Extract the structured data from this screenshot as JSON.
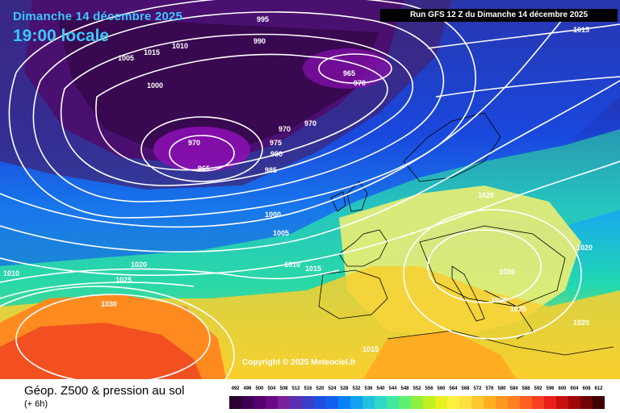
{
  "header": {
    "date": "Dimanche 14 décembre 2025",
    "time": "19:00 locale",
    "run": "Run GFS 12 Z du Dimanche 14 décembre 2025"
  },
  "map": {
    "copyright": "Copyright © 2025 Meteociel.fr",
    "isobar_labels": [
      "995",
      "990",
      "1015",
      "1010",
      "1005",
      "1015",
      "1000",
      "965",
      "970",
      "970",
      "970",
      "975",
      "980",
      "985",
      "970",
      "965",
      "1000",
      "1005",
      "1010",
      "1015",
      "1020",
      "1020",
      "1025",
      "1030",
      "1010",
      "1020",
      "1030",
      "1025",
      "1025",
      "1020",
      "1015"
    ]
  },
  "footer": {
    "title": "Géop. Z500 & pression au sol",
    "subtitle": "(+ 6h)"
  },
  "legend": {
    "ticks": [
      "492",
      "496",
      "500",
      "504",
      "508",
      "512",
      "516",
      "520",
      "524",
      "528",
      "532",
      "536",
      "540",
      "544",
      "548",
      "552",
      "556",
      "560",
      "564",
      "568",
      "572",
      "576",
      "580",
      "584",
      "588",
      "592",
      "596",
      "600",
      "604",
      "608",
      "612"
    ],
    "colors": [
      "#2a0030",
      "#3d0050",
      "#55006e",
      "#6a0a88",
      "#7a1fa0",
      "#5a2fb0",
      "#3a3fc8",
      "#1f4fe0",
      "#1060f0",
      "#0a80f5",
      "#12a0f0",
      "#20c0e0",
      "#30d8c8",
      "#40e8a0",
      "#60f070",
      "#90f040",
      "#c0f020",
      "#e8f020",
      "#fff040",
      "#ffe040",
      "#ffc830",
      "#ffb020",
      "#ff9820",
      "#ff8020",
      "#ff6020",
      "#f84020",
      "#e82018",
      "#c81010",
      "#a00808",
      "#700404",
      "#400000"
    ]
  }
}
